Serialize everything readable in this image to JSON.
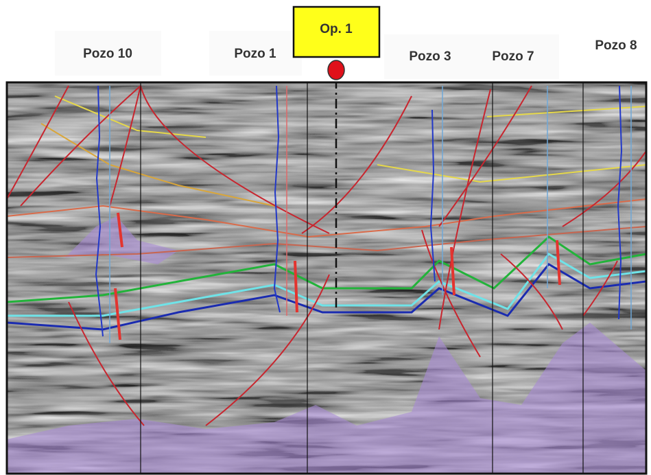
{
  "wells": [
    {
      "label": "Pozo 10"
    },
    {
      "label": "Pozo 1"
    },
    {
      "label": "Pozo 3"
    },
    {
      "label": "Pozo 7"
    },
    {
      "label": "Pozo 8"
    }
  ],
  "proposal": {
    "label": "Op. 1"
  }
}
